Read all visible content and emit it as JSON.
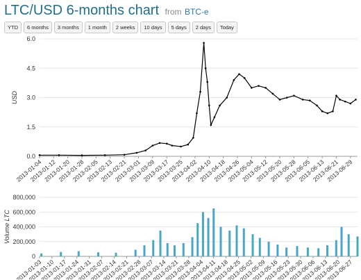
{
  "header": {
    "title": "LTC/USD 6-months chart",
    "from_label": "from",
    "source_link": "BTC-e"
  },
  "ranges": [
    "YTD",
    "6 months",
    "3 months",
    "1 month",
    "2 weeks",
    "10 days",
    "5 days",
    "2 days",
    "Today"
  ],
  "colors": {
    "candle": "#000000",
    "volume_bar": "#4aa6c8",
    "title": "#1f6f8b",
    "grid": "#e6e6e6"
  },
  "chart_data": [
    {
      "type": "line",
      "ylabel": "USD",
      "ylim": [
        0,
        6
      ],
      "yticks": [
        "0.0",
        "1.5",
        "3.0",
        "4.5",
        "6.0"
      ],
      "ytick_values": [
        0,
        1.5,
        3,
        4.5,
        6
      ],
      "xlim": [
        "2013-01-04",
        "2013-07-03"
      ],
      "xticks": [
        "2013-01-04",
        "2013-01-12",
        "2013-01-20",
        "2013-01-28",
        "2013-02-05",
        "2013-02-13",
        "2013-02-21",
        "2013-03-01",
        "2013-03-09",
        "2013-03-17",
        "2013-03-25",
        "2013-04-02",
        "2013-04-10",
        "2013-04-18",
        "2013-04-26",
        "2013-05-04",
        "2013-05-12",
        "2013-05-20",
        "2013-05-28",
        "2013-06-05",
        "2013-06-13",
        "2013-06-21",
        "2013-06-29"
      ],
      "series": [
        {
          "x": [
            "2013-01-04",
            "2013-01-15",
            "2013-01-28",
            "2013-02-10",
            "2013-02-21",
            "2013-02-28",
            "2013-03-05",
            "2013-03-09",
            "2013-03-13",
            "2013-03-17",
            "2013-03-20",
            "2013-03-25",
            "2013-03-29",
            "2013-04-01",
            "2013-04-03",
            "2013-04-05",
            "2013-04-07",
            "2013-04-08",
            "2013-04-09",
            "2013-04-10",
            "2013-04-11",
            "2013-04-13",
            "2013-04-16",
            "2013-04-20",
            "2013-04-24",
            "2013-04-27",
            "2013-04-30",
            "2013-05-04",
            "2013-05-08",
            "2013-05-12",
            "2013-05-16",
            "2013-05-20",
            "2013-05-24",
            "2013-05-28",
            "2013-06-02",
            "2013-06-06",
            "2013-06-10",
            "2013-06-13",
            "2013-06-16",
            "2013-06-19",
            "2013-06-21",
            "2013-06-23",
            "2013-06-26",
            "2013-06-29",
            "2013-07-02"
          ],
          "values": [
            0.06,
            0.06,
            0.05,
            0.06,
            0.08,
            0.18,
            0.3,
            0.55,
            0.68,
            0.65,
            0.55,
            0.5,
            0.6,
            0.95,
            2.2,
            3.3,
            5.8,
            4.5,
            3.8,
            2.6,
            1.6,
            2.0,
            2.6,
            3.0,
            3.9,
            4.2,
            4.0,
            3.5,
            3.6,
            3.5,
            3.2,
            2.9,
            3.0,
            3.1,
            2.9,
            2.85,
            2.6,
            2.3,
            2.2,
            2.3,
            3.1,
            2.9,
            2.8,
            2.7,
            2.9
          ]
        }
      ]
    },
    {
      "type": "bar",
      "ylabel": "Volume LTC",
      "ylim": [
        0,
        800000
      ],
      "yticks": [
        "0",
        "200,000",
        "400,000",
        "600,000",
        "800,000"
      ],
      "ytick_values": [
        0,
        200000,
        400000,
        600000,
        800000
      ],
      "xlim": [
        "2013-01-03",
        "2013-07-01"
      ],
      "xticks": [
        "2013-01-03",
        "2013-01-10",
        "2013-01-17",
        "2013-01-24",
        "2013-01-31",
        "2013-02-07",
        "2013-02-14",
        "2013-02-21",
        "2013-02-28",
        "2013-03-07",
        "2013-03-14",
        "2013-03-21",
        "2013-03-28",
        "2013-04-04",
        "2013-04-11",
        "2013-04-18",
        "2013-04-25",
        "2013-05-02",
        "2013-05-09",
        "2013-05-16",
        "2013-05-23",
        "2013-05-30",
        "2013-06-06",
        "2013-06-13",
        "2013-06-20",
        "2013-06-27"
      ],
      "series": [
        {
          "x": [
            "2013-01-04",
            "2013-01-15",
            "2013-01-25",
            "2013-02-05",
            "2013-02-15",
            "2013-02-26",
            "2013-03-03",
            "2013-03-08",
            "2013-03-12",
            "2013-03-16",
            "2013-03-20",
            "2013-03-25",
            "2013-03-30",
            "2013-04-02",
            "2013-04-05",
            "2013-04-08",
            "2013-04-11",
            "2013-04-15",
            "2013-04-20",
            "2013-04-24",
            "2013-04-28",
            "2013-05-03",
            "2013-05-07",
            "2013-05-12",
            "2013-05-17",
            "2013-05-22",
            "2013-05-28",
            "2013-06-03",
            "2013-06-09",
            "2013-06-14",
            "2013-06-19",
            "2013-06-22",
            "2013-06-26",
            "2013-07-01"
          ],
          "values": [
            40000,
            60000,
            70000,
            55000,
            50000,
            90000,
            150000,
            220000,
            350000,
            180000,
            150000,
            180000,
            260000,
            450000,
            600000,
            520000,
            650000,
            400000,
            350000,
            420000,
            380000,
            300000,
            250000,
            200000,
            160000,
            120000,
            140000,
            120000,
            110000,
            150000,
            220000,
            400000,
            300000,
            270000
          ]
        }
      ]
    }
  ]
}
